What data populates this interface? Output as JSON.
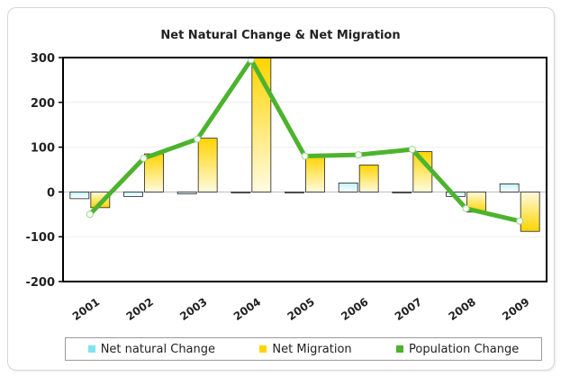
{
  "chart_data": {
    "type": "bar",
    "title": "Net Natural Change & Net Migration",
    "categories": [
      "2001",
      "2002",
      "2003",
      "2004",
      "2005",
      "2006",
      "2007",
      "2008",
      "2009"
    ],
    "series": [
      {
        "name": "Net natural Change",
        "type": "bar",
        "color": "#7fe3f0",
        "values": [
          -15,
          -10,
          -4,
          0,
          -2,
          20,
          -2,
          -10,
          18
        ]
      },
      {
        "name": "Net Migration",
        "type": "bar",
        "color": "#ffd400",
        "values": [
          -35,
          85,
          120,
          300,
          80,
          60,
          90,
          -45,
          -88
        ]
      },
      {
        "name": "Population Change",
        "type": "line",
        "color": "#4db32e",
        "values": [
          -50,
          75,
          118,
          295,
          80,
          83,
          95,
          -37,
          -65
        ]
      }
    ],
    "ylim": [
      -200,
      300
    ],
    "yticks": [
      -200,
      -100,
      0,
      100,
      200,
      300
    ],
    "xlabel": "",
    "ylabel": "",
    "legend_position": "bottom"
  }
}
